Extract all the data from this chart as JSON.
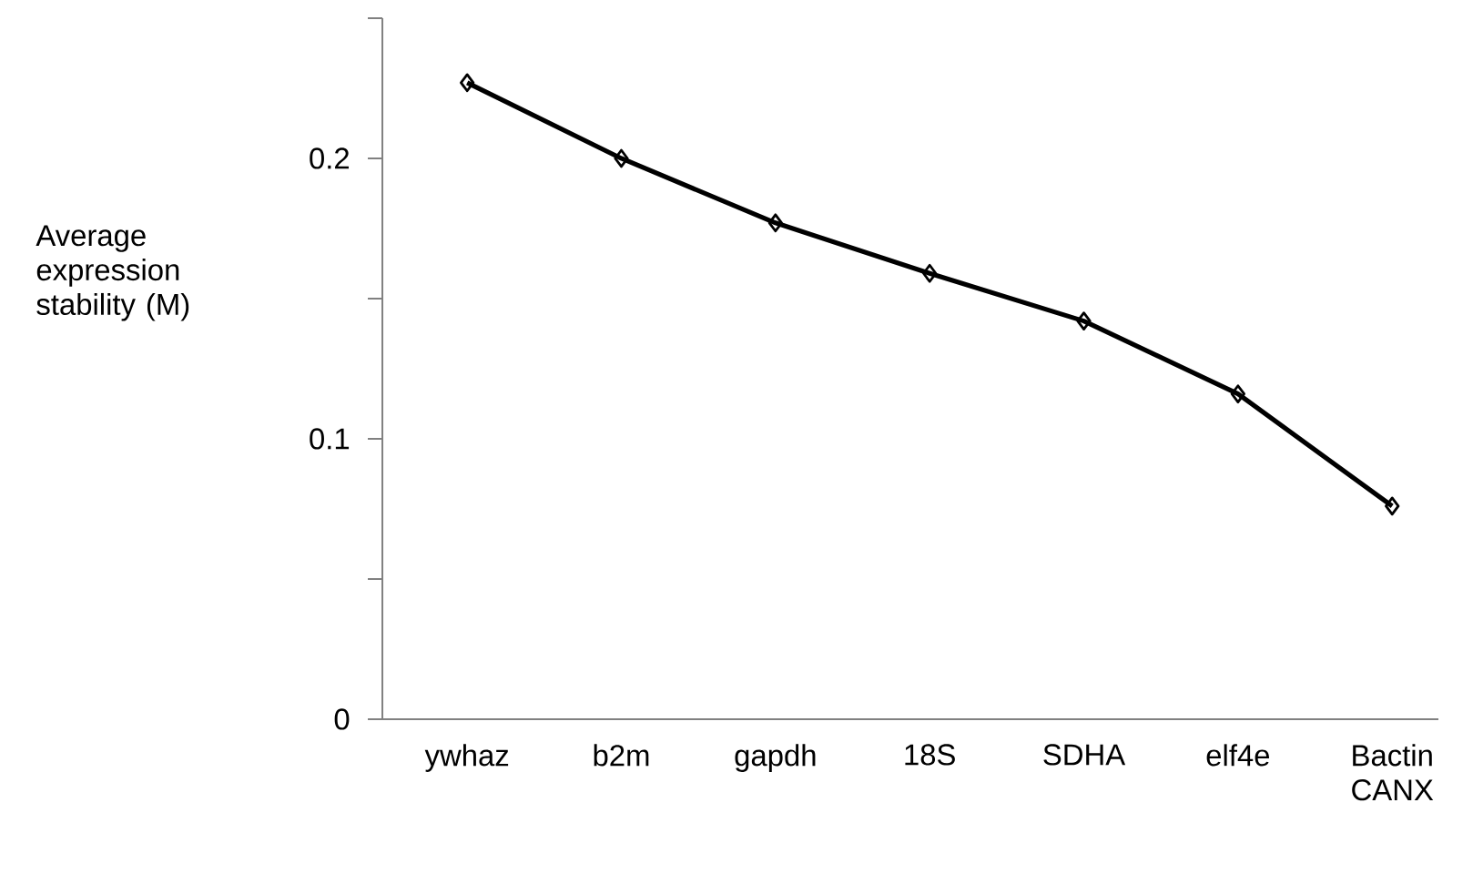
{
  "chart_data": {
    "type": "line",
    "ylabel": "Average expression stability (M)",
    "categories": [
      "ywhaz",
      "b2m",
      "gapdh",
      "18S",
      "SDHA",
      "elf4e",
      "Bactin CANX"
    ],
    "series": [
      {
        "color": "#000000",
        "values": [
          0.227,
          0.2,
          0.177,
          0.159,
          0.142,
          0.116,
          0.076
        ]
      }
    ],
    "ylim": [
      0,
      0.25
    ],
    "yticks": [
      0,
      {
        "value": 0.05,
        "label": null
      },
      0.1,
      {
        "value": 0.15,
        "label": null
      },
      0.2,
      {
        "value": 0.25,
        "label": null
      }
    ],
    "marker": "diamond",
    "line_style": "solid"
  }
}
